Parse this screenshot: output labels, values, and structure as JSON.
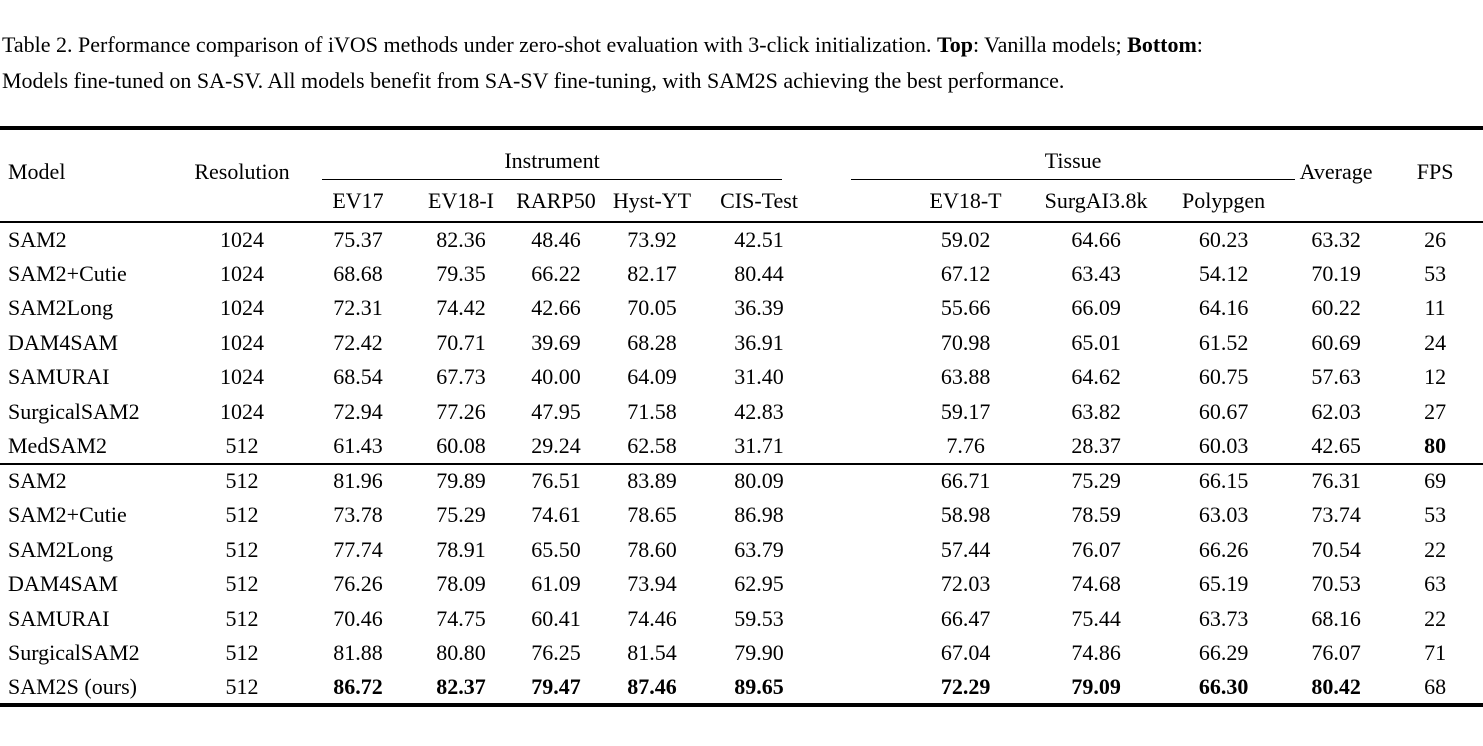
{
  "colors": {
    "text": "#000000",
    "background": "#ffffff"
  },
  "caption": {
    "line1_prefix": "Table 2. Performance comparison of iVOS methods under zero-shot evaluation with 3-click initialization. ",
    "top_label": "Top",
    "line1_mid": ": Vanilla models; ",
    "bottom_label": "Bottom",
    "line1_end": ":",
    "line2": "Models fine-tuned on SA-SV. All models benefit from SA-SV fine-tuning, with SAM2S achieving the best performance."
  },
  "table": {
    "headers": {
      "model": "Model",
      "resolution": "Resolution",
      "instrument_group": "Instrument",
      "tissue_group": "Tissue",
      "average": "Average",
      "fps": "FPS",
      "instrument_cols": [
        "EV17",
        "EV18-I",
        "RARP50",
        "Hyst-YT",
        "CIS-Test"
      ],
      "tissue_cols": [
        "EV18-T",
        "SurgAI3.8k",
        "Polypgen"
      ]
    },
    "sections": [
      {
        "name": "vanilla-models",
        "rows": [
          {
            "model": "SAM2",
            "resolution": "1024",
            "values": [
              "75.37",
              "82.36",
              "48.46",
              "73.92",
              "42.51",
              "59.02",
              "64.66",
              "60.23",
              "63.32"
            ],
            "fps": "26",
            "bold_values": false,
            "bold_fps": false
          },
          {
            "model": "SAM2+Cutie",
            "resolution": "1024",
            "values": [
              "68.68",
              "79.35",
              "66.22",
              "82.17",
              "80.44",
              "67.12",
              "63.43",
              "54.12",
              "70.19"
            ],
            "fps": "53",
            "bold_values": false,
            "bold_fps": false
          },
          {
            "model": "SAM2Long",
            "resolution": "1024",
            "values": [
              "72.31",
              "74.42",
              "42.66",
              "70.05",
              "36.39",
              "55.66",
              "66.09",
              "64.16",
              "60.22"
            ],
            "fps": "11",
            "bold_values": false,
            "bold_fps": false
          },
          {
            "model": "DAM4SAM",
            "resolution": "1024",
            "values": [
              "72.42",
              "70.71",
              "39.69",
              "68.28",
              "36.91",
              "70.98",
              "65.01",
              "61.52",
              "60.69"
            ],
            "fps": "24",
            "bold_values": false,
            "bold_fps": false
          },
          {
            "model": "SAMURAI",
            "resolution": "1024",
            "values": [
              "68.54",
              "67.73",
              "40.00",
              "64.09",
              "31.40",
              "63.88",
              "64.62",
              "60.75",
              "57.63"
            ],
            "fps": "12",
            "bold_values": false,
            "bold_fps": false
          },
          {
            "model": "SurgicalSAM2",
            "resolution": "1024",
            "values": [
              "72.94",
              "77.26",
              "47.95",
              "71.58",
              "42.83",
              "59.17",
              "63.82",
              "60.67",
              "62.03"
            ],
            "fps": "27",
            "bold_values": false,
            "bold_fps": false
          },
          {
            "model": "MedSAM2",
            "resolution": "512",
            "values": [
              "61.43",
              "60.08",
              "29.24",
              "62.58",
              "31.71",
              "7.76",
              "28.37",
              "60.03",
              "42.65"
            ],
            "fps": "80",
            "bold_values": false,
            "bold_fps": true
          }
        ]
      },
      {
        "name": "fine-tuned-on-sa-sv",
        "rows": [
          {
            "model": "SAM2",
            "resolution": "512",
            "values": [
              "81.96",
              "79.89",
              "76.51",
              "83.89",
              "80.09",
              "66.71",
              "75.29",
              "66.15",
              "76.31"
            ],
            "fps": "69",
            "bold_values": false,
            "bold_fps": false
          },
          {
            "model": "SAM2+Cutie",
            "resolution": "512",
            "values": [
              "73.78",
              "75.29",
              "74.61",
              "78.65",
              "86.98",
              "58.98",
              "78.59",
              "63.03",
              "73.74"
            ],
            "fps": "53",
            "bold_values": false,
            "bold_fps": false
          },
          {
            "model": "SAM2Long",
            "resolution": "512",
            "values": [
              "77.74",
              "78.91",
              "65.50",
              "78.60",
              "63.79",
              "57.44",
              "76.07",
              "66.26",
              "70.54"
            ],
            "fps": "22",
            "bold_values": false,
            "bold_fps": false
          },
          {
            "model": "DAM4SAM",
            "resolution": "512",
            "values": [
              "76.26",
              "78.09",
              "61.09",
              "73.94",
              "62.95",
              "72.03",
              "74.68",
              "65.19",
              "70.53"
            ],
            "fps": "63",
            "bold_values": false,
            "bold_fps": false
          },
          {
            "model": "SAMURAI",
            "resolution": "512",
            "values": [
              "70.46",
              "74.75",
              "60.41",
              "74.46",
              "59.53",
              "66.47",
              "75.44",
              "63.73",
              "68.16"
            ],
            "fps": "22",
            "bold_values": false,
            "bold_fps": false
          },
          {
            "model": "SurgicalSAM2",
            "resolution": "512",
            "values": [
              "81.88",
              "80.80",
              "76.25",
              "81.54",
              "79.90",
              "67.04",
              "74.86",
              "66.29",
              "76.07"
            ],
            "fps": "71",
            "bold_values": false,
            "bold_fps": false
          },
          {
            "model": "SAM2S (ours)",
            "resolution": "512",
            "values": [
              "86.72",
              "82.37",
              "79.47",
              "87.46",
              "89.65",
              "72.29",
              "79.09",
              "66.30",
              "80.42"
            ],
            "fps": "68",
            "bold_values": true,
            "bold_fps": false
          }
        ]
      }
    ]
  }
}
